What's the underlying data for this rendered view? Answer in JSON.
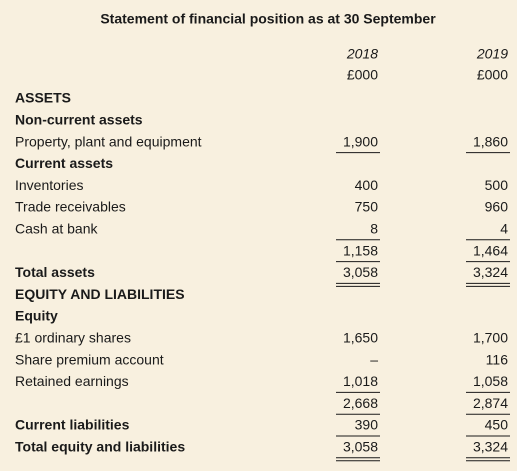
{
  "title": "Statement of financial position as at 30 September",
  "columns": [
    {
      "year": "2018",
      "unit": "£000"
    },
    {
      "year": "2019",
      "unit": "£000"
    }
  ],
  "rows": [
    {
      "label": "ASSETS",
      "bold": true
    },
    {
      "label": "Non-current assets",
      "bold": true
    },
    {
      "label": "Property, plant and equipment",
      "values": [
        "1,900",
        "1,860"
      ],
      "rule": "single"
    },
    {
      "label": "Current assets",
      "bold": true
    },
    {
      "label": "Inventories",
      "values": [
        "400",
        "500"
      ]
    },
    {
      "label": "Trade receivables",
      "values": [
        "750",
        "960"
      ]
    },
    {
      "label": "Cash at bank",
      "values": [
        "8",
        "4"
      ],
      "rule": "single"
    },
    {
      "label": null,
      "values": [
        "1,158",
        "1,464"
      ],
      "rule": "single"
    },
    {
      "label": "Total assets",
      "bold": true,
      "values": [
        "3,058",
        "3,324"
      ],
      "rule": "double"
    },
    {
      "label": "EQUITY AND LIABILITIES",
      "bold": true
    },
    {
      "label": "Equity",
      "bold": true
    },
    {
      "label": "£1 ordinary shares",
      "values": [
        "1,650",
        "1,700"
      ]
    },
    {
      "label": "Share premium account",
      "values": [
        "–",
        "116"
      ]
    },
    {
      "label": "Retained earnings",
      "values": [
        "1,018",
        "1,058"
      ],
      "rule": "single"
    },
    {
      "label": null,
      "values": [
        "2,668",
        "2,874"
      ],
      "rule": "single"
    },
    {
      "label": "Current liabilities",
      "bold": true,
      "values": [
        "390",
        "450"
      ],
      "rule": "single"
    },
    {
      "label": "Total equity and liabilities",
      "bold": true,
      "values": [
        "3,058",
        "3,324"
      ],
      "rule": "double"
    }
  ]
}
